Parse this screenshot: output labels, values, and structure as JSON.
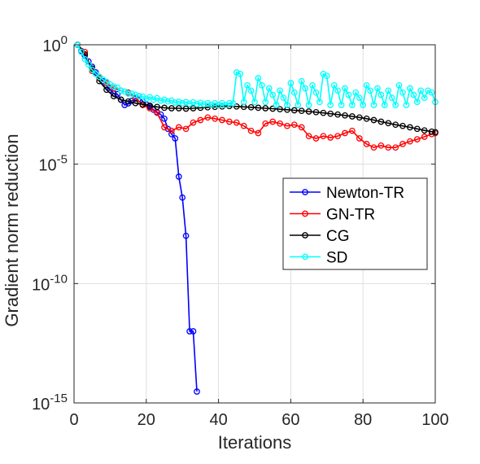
{
  "chart_data": {
    "type": "line",
    "xlabel": "Iterations",
    "ylabel": "Gradient norm reduction",
    "xlim": [
      0,
      100
    ],
    "ylim": [
      1e-15,
      1
    ],
    "yscale": "log",
    "xticks": [
      0,
      20,
      40,
      60,
      80,
      100
    ],
    "xtick_labels": [
      "0",
      "20",
      "40",
      "60",
      "80",
      "100"
    ],
    "yticks": [
      {
        "value": 1,
        "base": "10",
        "exp": "0"
      },
      {
        "value": 1e-05,
        "base": "10",
        "exp": "-5"
      },
      {
        "value": 1e-10,
        "base": "10",
        "exp": "-10"
      },
      {
        "value": 1e-15,
        "base": "10",
        "exp": "-15"
      }
    ],
    "grid": true,
    "legend_position": "center-right",
    "series": [
      {
        "name": "Newton-TR",
        "color": "#0000ff",
        "x": [
          1,
          2,
          3,
          4,
          5,
          6,
          7,
          8,
          9,
          10,
          11,
          12,
          13,
          14,
          15,
          16,
          17,
          18,
          19,
          20,
          21,
          22,
          23,
          24,
          25,
          26,
          27,
          28,
          29,
          30,
          31,
          32,
          33,
          34
        ],
        "y": [
          1.0,
          0.55,
          0.35,
          0.2,
          0.12,
          0.07,
          0.045,
          0.03,
          0.02,
          0.013,
          0.009,
          0.0085,
          0.005,
          0.003,
          0.0035,
          0.0045,
          0.0055,
          0.007,
          0.0042,
          0.0032,
          0.0025,
          0.0019,
          0.0015,
          0.0012,
          0.0008,
          0.0003,
          0.00018,
          0.00012,
          3e-06,
          4e-07,
          1e-08,
          1e-12,
          1e-12,
          3e-15
        ]
      },
      {
        "name": "GN-TR",
        "color": "#ff0000",
        "x": [
          1,
          3,
          5,
          7,
          9,
          11,
          13,
          15,
          17,
          19,
          21,
          23,
          25,
          27,
          29,
          31,
          33,
          35,
          37,
          39,
          41,
          43,
          45,
          47,
          49,
          51,
          53,
          55,
          57,
          59,
          61,
          63,
          65,
          67,
          69,
          71,
          73,
          75,
          77,
          79,
          81,
          83,
          85,
          87,
          89,
          91,
          93,
          95,
          97,
          99,
          100
        ],
        "y": [
          1.0,
          0.5,
          0.08,
          0.04,
          0.025,
          0.015,
          0.012,
          0.01,
          0.006,
          0.003,
          0.0022,
          0.0014,
          0.00035,
          0.00025,
          0.00035,
          0.0003,
          0.00055,
          0.0007,
          0.0009,
          0.0008,
          0.0007,
          0.0006,
          0.00055,
          0.0004,
          0.00025,
          0.0002,
          0.0005,
          0.0006,
          0.0005,
          0.0004,
          0.00045,
          0.00035,
          0.00015,
          0.00012,
          0.00015,
          0.00013,
          0.00015,
          0.0002,
          0.00025,
          0.00012,
          7e-05,
          5e-05,
          6e-05,
          5e-05,
          5e-05,
          7e-05,
          9e-05,
          0.00011,
          0.00014,
          0.00018,
          0.0002
        ]
      },
      {
        "name": "CG",
        "color": "#000000",
        "x": [
          1,
          3,
          5,
          7,
          9,
          11,
          13,
          15,
          17,
          19,
          21,
          23,
          25,
          27,
          29,
          31,
          33,
          35,
          37,
          39,
          41,
          43,
          45,
          47,
          49,
          51,
          53,
          55,
          57,
          59,
          61,
          63,
          65,
          67,
          69,
          71,
          73,
          75,
          77,
          79,
          81,
          83,
          85,
          87,
          89,
          91,
          93,
          95,
          97,
          99,
          100
        ],
        "y": [
          1.0,
          0.4,
          0.1,
          0.03,
          0.013,
          0.007,
          0.005,
          0.0042,
          0.0036,
          0.0032,
          0.0028,
          0.0025,
          0.0023,
          0.0022,
          0.0022,
          0.0021,
          0.0022,
          0.0023,
          0.0024,
          0.0025,
          0.0026,
          0.0027,
          0.0026,
          0.0025,
          0.0024,
          0.0023,
          0.0022,
          0.0021,
          0.002,
          0.0019,
          0.0018,
          0.0017,
          0.0016,
          0.0015,
          0.0014,
          0.0013,
          0.0012,
          0.0011,
          0.001,
          0.0009,
          0.0008,
          0.0007,
          0.0006,
          0.00052,
          0.00045,
          0.0004,
          0.00035,
          0.0003,
          0.00026,
          0.00023,
          0.00022
        ]
      },
      {
        "name": "SD",
        "color": "#00ffff",
        "x": [
          1,
          2,
          3,
          4,
          5,
          6,
          7,
          8,
          9,
          10,
          11,
          12,
          13,
          14,
          15,
          16,
          17,
          18,
          19,
          20,
          21,
          22,
          23,
          24,
          25,
          26,
          27,
          28,
          29,
          30,
          31,
          32,
          33,
          34,
          35,
          36,
          37,
          38,
          39,
          40,
          41,
          42,
          43,
          44,
          45,
          46,
          47,
          48,
          49,
          50,
          51,
          52,
          53,
          54,
          55,
          56,
          57,
          58,
          59,
          60,
          61,
          62,
          63,
          64,
          65,
          66,
          67,
          68,
          69,
          70,
          71,
          72,
          73,
          74,
          75,
          76,
          77,
          78,
          79,
          80,
          81,
          82,
          83,
          84,
          85,
          86,
          87,
          88,
          89,
          90,
          91,
          92,
          93,
          94,
          95,
          96,
          97,
          98,
          99,
          100
        ],
        "y": [
          1.0,
          0.5,
          0.25,
          0.15,
          0.09,
          0.06,
          0.045,
          0.035,
          0.028,
          0.022,
          0.018,
          0.016,
          0.012,
          0.011,
          0.009,
          0.009,
          0.008,
          0.007,
          0.0068,
          0.0055,
          0.0065,
          0.005,
          0.0058,
          0.0045,
          0.005,
          0.0042,
          0.0046,
          0.0038,
          0.0041,
          0.0036,
          0.004,
          0.0034,
          0.0039,
          0.0033,
          0.0037,
          0.0032,
          0.0036,
          0.0031,
          0.0036,
          0.003,
          0.0036,
          0.003,
          0.0036,
          0.0035,
          0.07,
          0.06,
          0.004,
          0.02,
          0.012,
          0.004,
          0.04,
          0.02,
          0.004,
          0.015,
          0.008,
          0.003,
          0.012,
          0.006,
          0.003,
          0.025,
          0.01,
          0.003,
          0.03,
          0.015,
          0.003,
          0.02,
          0.01,
          0.004,
          0.06,
          0.05,
          0.003,
          0.02,
          0.012,
          0.003,
          0.015,
          0.008,
          0.003,
          0.01,
          0.006,
          0.003,
          0.02,
          0.012,
          0.003,
          0.015,
          0.008,
          0.003,
          0.012,
          0.006,
          0.003,
          0.02,
          0.01,
          0.003,
          0.015,
          0.008,
          0.004,
          0.012,
          0.006,
          0.012,
          0.01,
          0.004
        ]
      }
    ]
  }
}
